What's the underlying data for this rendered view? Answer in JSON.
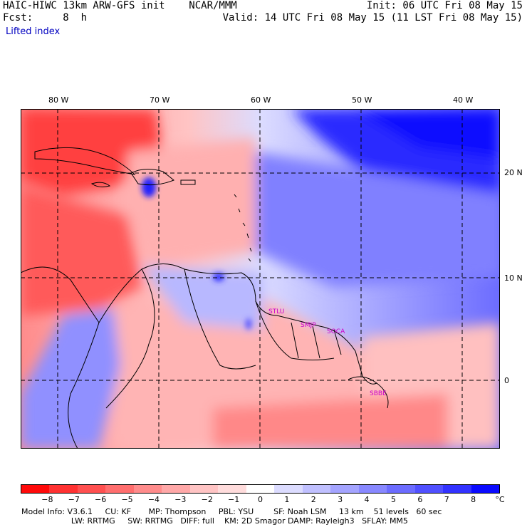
{
  "header": {
    "title": "HAIC-HIWC 13km ARW-GFS init    NCAR/MMM",
    "fcst": "Fcst:     8  h",
    "init": "Init: 06 UTC Fri 08 May 15",
    "valid": "Valid: 14 UTC Fri 08 May 15 (11 LST Fri 08 May 15)",
    "field": "Lifted index"
  },
  "map": {
    "lon_labels": [
      "80 W",
      "70 W",
      "60 W",
      "50 W",
      "40 W"
    ],
    "lat_labels": [
      "20 N",
      "10 N",
      "0"
    ],
    "station_labels": [
      "STLU",
      "SMJP",
      "SOCA",
      "SBBE"
    ],
    "station_color": "#cc00cc"
  },
  "colorbar": {
    "colors": [
      "#ff0a0a",
      "#ff3232",
      "#ff5050",
      "#ff6e6e",
      "#ff8c8c",
      "#ffa8a8",
      "#ffc4c4",
      "#ffdcdc",
      "#ffffff",
      "#dcdcff",
      "#c0c0ff",
      "#a4a4ff",
      "#8888ff",
      "#6c6cff",
      "#5050ff",
      "#3232ff",
      "#0a0aff"
    ],
    "labels": [
      "−8",
      "−7",
      "−6",
      "−5",
      "−4",
      "−3",
      "−2",
      "−1",
      "0",
      "1",
      "2",
      "3",
      "4",
      "5",
      "6",
      "7",
      "8"
    ],
    "unit": "°C"
  },
  "footer": {
    "line1": "Model Info: V3.6.1     CU: KF       MP: Thompson     PBL: YSU        SF: Noah LSM     13 km    51 levels   60 sec",
    "line2": "                    LW: RRTMG     SW: RRTMG   DIFF: full    KM: 2D Smagor DAMP: Rayleigh3   SFLAY: MM5"
  }
}
